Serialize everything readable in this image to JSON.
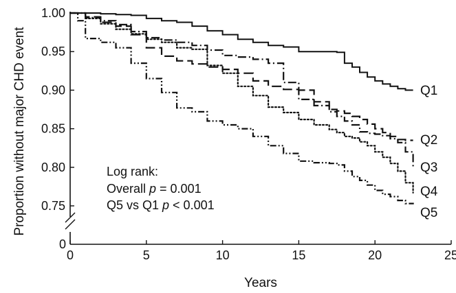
{
  "chart_data": {
    "type": "line",
    "xlabel": "Years",
    "ylabel": "Proportion without major CHD event",
    "xlim": [
      0,
      25
    ],
    "ylim": [
      0.74,
      1.0
    ],
    "y_axis_break": true,
    "y_zero_label": "0",
    "grid": false,
    "legend": "none",
    "x_ticks": [
      0,
      5,
      10,
      15,
      20,
      25
    ],
    "y_ticks": [
      0.75,
      0.8,
      0.85,
      0.9,
      0.95,
      1.0
    ],
    "x_tick_labels": [
      "0",
      "5",
      "10",
      "15",
      "20",
      "25"
    ],
    "y_tick_labels": [
      "0.75",
      "0.80",
      "0.85",
      "0.90",
      "0.95",
      "1.00"
    ],
    "annotation": {
      "line1": "Log rank:",
      "line2_prefix": "Overall ",
      "line2_p": "p",
      "line2_suffix": " = 0.001",
      "line3_prefix": "Q5 vs Q1 ",
      "line3_p": "p",
      "line3_suffix": " < 0.001"
    },
    "series": [
      {
        "name": "Q1",
        "style": "solid",
        "x": [
          0,
          1,
          2,
          3,
          4,
          5,
          6,
          7,
          8,
          9,
          10,
          11,
          12,
          13,
          14,
          15,
          16,
          17,
          17.5,
          18,
          18.5,
          19,
          19.5,
          20,
          20.5,
          21,
          21.5,
          22,
          22.5
        ],
        "y": [
          1.0,
          1.0,
          0.999,
          0.998,
          0.997,
          0.993,
          0.99,
          0.988,
          0.983,
          0.977,
          0.972,
          0.966,
          0.962,
          0.958,
          0.956,
          0.95,
          0.95,
          0.95,
          0.949,
          0.935,
          0.93,
          0.923,
          0.917,
          0.912,
          0.908,
          0.905,
          0.902,
          0.9,
          0.9
        ]
      },
      {
        "name": "Q2",
        "style": "long-dash",
        "x": [
          0,
          1,
          2,
          3,
          4,
          5,
          6,
          7,
          8,
          9,
          10,
          11,
          12,
          13,
          14,
          15,
          16,
          17,
          17.5,
          18,
          18.5,
          19,
          19.5,
          20,
          20.5,
          21,
          21.5,
          22,
          22.5
        ],
        "y": [
          1.0,
          0.995,
          0.988,
          0.983,
          0.972,
          0.955,
          0.944,
          0.938,
          0.934,
          0.93,
          0.927,
          0.922,
          0.912,
          0.905,
          0.901,
          0.9,
          0.885,
          0.875,
          0.873,
          0.87,
          0.866,
          0.862,
          0.856,
          0.85,
          0.845,
          0.84,
          0.836,
          0.835,
          0.835
        ]
      },
      {
        "name": "Q3",
        "style": "dash-dot",
        "x": [
          0,
          1,
          2,
          3,
          4,
          5,
          6,
          7,
          8,
          9,
          10,
          11,
          12,
          13,
          14,
          15,
          16,
          17,
          17.5,
          18,
          18.5,
          19,
          19.5,
          20,
          20.5,
          21,
          21.5,
          22,
          22.5
        ],
        "y": [
          1.0,
          0.994,
          0.99,
          0.985,
          0.976,
          0.968,
          0.965,
          0.962,
          0.958,
          0.952,
          0.945,
          0.943,
          0.94,
          0.935,
          0.91,
          0.888,
          0.88,
          0.872,
          0.866,
          0.86,
          0.855,
          0.846,
          0.844,
          0.843,
          0.841,
          0.837,
          0.832,
          0.82,
          0.8
        ]
      },
      {
        "name": "Q4",
        "style": "dotted",
        "x": [
          0,
          1,
          2,
          3,
          4,
          5,
          6,
          7,
          8,
          9,
          10,
          11,
          12,
          13,
          14,
          15,
          16,
          17,
          17.5,
          18,
          18.5,
          19,
          19.5,
          20,
          20.5,
          21,
          21.5,
          22,
          22.5
        ],
        "y": [
          1.0,
          0.993,
          0.986,
          0.979,
          0.973,
          0.966,
          0.962,
          0.955,
          0.953,
          0.932,
          0.922,
          0.905,
          0.893,
          0.878,
          0.871,
          0.862,
          0.855,
          0.849,
          0.845,
          0.84,
          0.838,
          0.833,
          0.828,
          0.82,
          0.813,
          0.805,
          0.795,
          0.78,
          0.767
        ]
      },
      {
        "name": "Q5",
        "style": "dash-dot-dot",
        "x": [
          0,
          0.5,
          1,
          2,
          3,
          4,
          5,
          6,
          7,
          8,
          9,
          10,
          11,
          12,
          13,
          14,
          15,
          16,
          17,
          17.5,
          18,
          18.5,
          19,
          19.5,
          20,
          20.5,
          21,
          21.5,
          22,
          22.5
        ],
        "y": [
          1.0,
          0.99,
          0.967,
          0.962,
          0.955,
          0.935,
          0.915,
          0.897,
          0.877,
          0.872,
          0.86,
          0.855,
          0.85,
          0.84,
          0.828,
          0.818,
          0.808,
          0.806,
          0.805,
          0.803,
          0.795,
          0.788,
          0.783,
          0.777,
          0.77,
          0.765,
          0.762,
          0.757,
          0.753,
          0.752
        ]
      }
    ]
  }
}
